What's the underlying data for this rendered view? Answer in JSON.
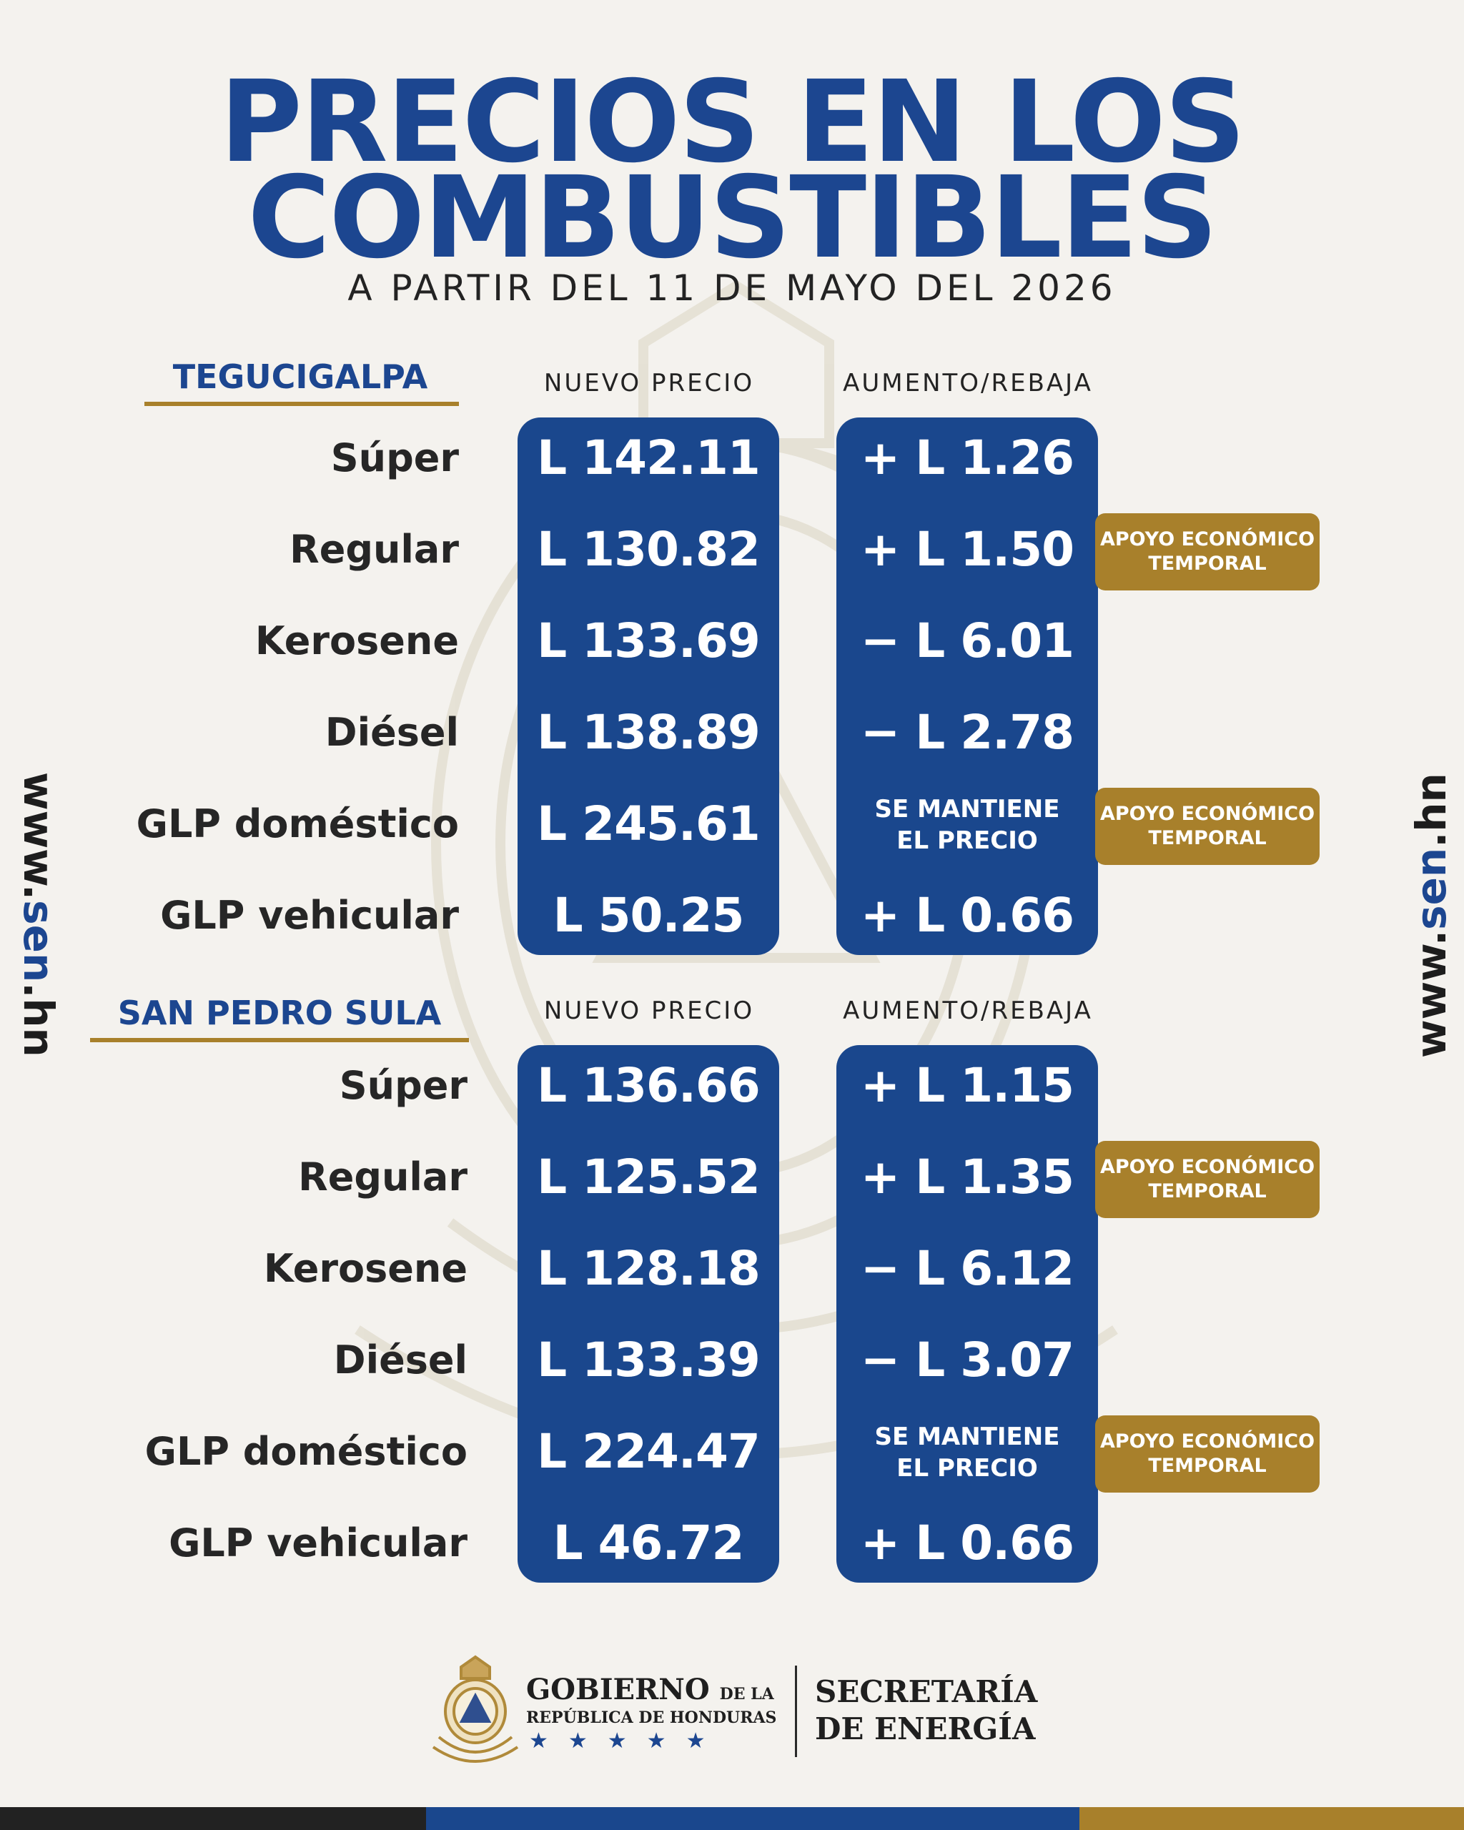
{
  "header": {
    "title_line1": "PRECIOS EN LOS",
    "title_line2": "COMBUSTIBLES",
    "subtitle": "A PARTIR DEL 11 DE MAYO DEL 2026"
  },
  "columns": {
    "price": "NUEVO PRECIO",
    "change": "AUMENTO/REBAJA"
  },
  "tegucigalpa": {
    "city": "TEGUCIGALPA",
    "rows": [
      {
        "fuel": "Súper",
        "price": "L 142.11",
        "change": "+ L 1.26"
      },
      {
        "fuel": "Regular",
        "price": "L 130.82",
        "change": "+ L 1.50"
      },
      {
        "fuel": "Kerosene",
        "price": "L 133.69",
        "change": "− L 6.01"
      },
      {
        "fuel": "Diésel",
        "price": "L 138.89",
        "change": "− L 2.78"
      },
      {
        "fuel": "GLP doméstico",
        "price": "L 245.61",
        "change": "SE MANTIENE\nEL PRECIO"
      },
      {
        "fuel": "GLP vehicular",
        "price": "L 50.25",
        "change": "+ L 0.66"
      }
    ]
  },
  "san_pedro_sula": {
    "city": "SAN PEDRO SULA",
    "rows": [
      {
        "fuel": "Súper",
        "price": "L 136.66",
        "change": "+ L 1.15"
      },
      {
        "fuel": "Regular",
        "price": "L 125.52",
        "change": "+ L 1.35"
      },
      {
        "fuel": "Kerosene",
        "price": "L 128.18",
        "change": "− L 6.12"
      },
      {
        "fuel": "Diésel",
        "price": "L 133.39",
        "change": "− L 3.07"
      },
      {
        "fuel": "GLP doméstico",
        "price": "L 224.47",
        "change": "SE MANTIENE\nEL PRECIO"
      },
      {
        "fuel": "GLP vehicular",
        "price": "L 46.72",
        "change": "+ L 0.66"
      }
    ]
  },
  "badge": {
    "line1": "APOYO ECONÓMICO",
    "line2": "TEMPORAL"
  },
  "side_url": {
    "prefix": "www.",
    "accent": "sen",
    "suffix": ".hn"
  },
  "footer": {
    "gob_main": "GOBIERNO",
    "gob_dela": "DE LA",
    "gob_sub": "REPÚBLICA DE HONDURAS",
    "stars": "★★★★★",
    "sec_line1": "SECRETARÍA",
    "sec_line2": "DE ENERGÍA"
  },
  "colors": {
    "brand_blue": "#1c4690",
    "panel_blue": "#1a478d",
    "gold": "#a8802b",
    "background": "#f4f2ee"
  },
  "icons": [
    "honduras-coat-of-arms-emblem",
    "watermark-coat-of-arms"
  ]
}
